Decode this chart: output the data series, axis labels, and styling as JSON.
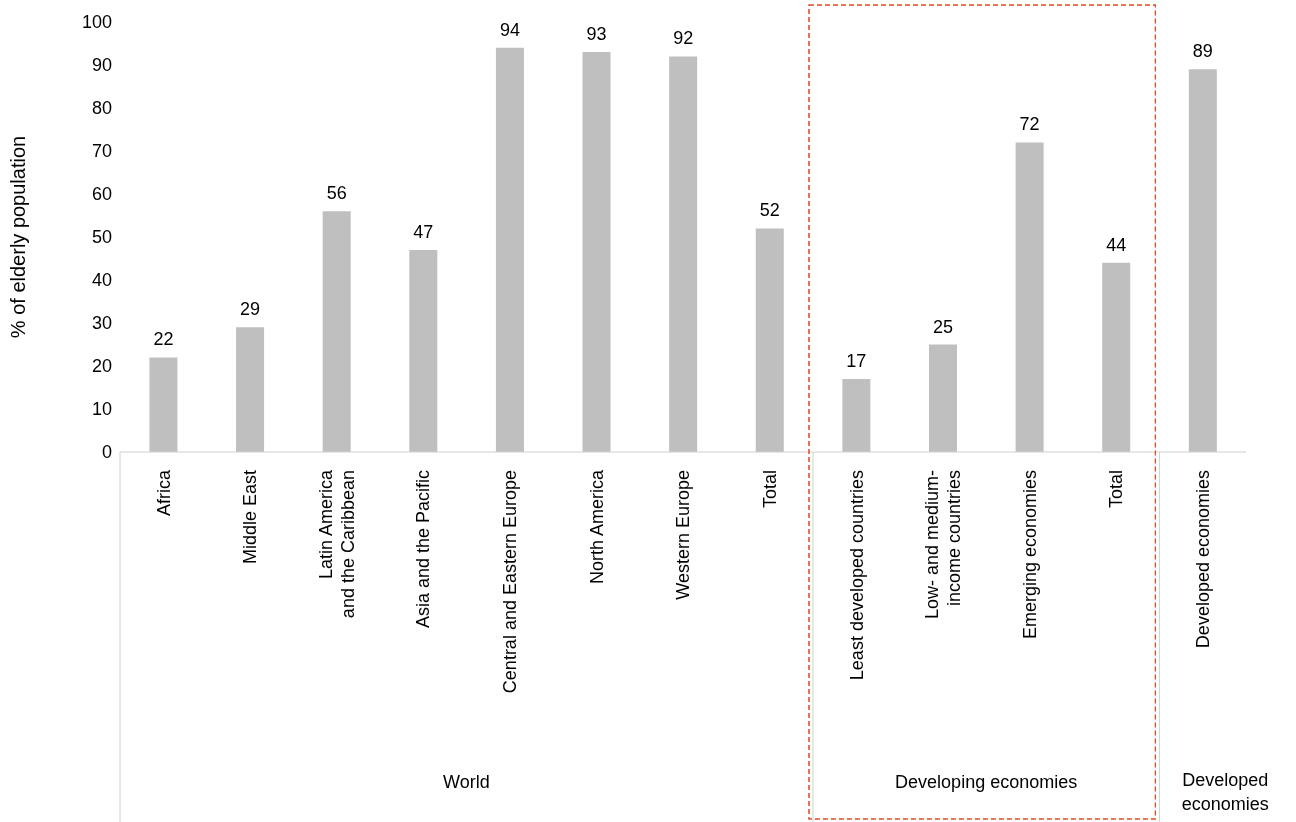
{
  "chart_data": {
    "type": "bar",
    "ylabel": "% of elderly population",
    "categories": [
      "Africa",
      "Middle East",
      "Latin America\nand the Caribbean",
      "Asia and the Pacific",
      "Central and Eastern Europe",
      "North America",
      "Western Europe",
      "Total",
      "Least developed countries",
      "Low- and medium-\nincome countries",
      "Emerging economies",
      "Total",
      "Developed economies"
    ],
    "values": [
      22,
      29,
      56,
      47,
      94,
      93,
      92,
      52,
      17,
      25,
      72,
      44,
      89
    ],
    "color": "#bfbfbf",
    "ylim": [
      0,
      100
    ],
    "yticks": [
      0,
      10,
      20,
      30,
      40,
      50,
      60,
      70,
      80,
      90,
      100
    ],
    "data_labels": true,
    "annotations": [
      "World",
      "Developing economies",
      "Developed\neconomies"
    ]
  }
}
